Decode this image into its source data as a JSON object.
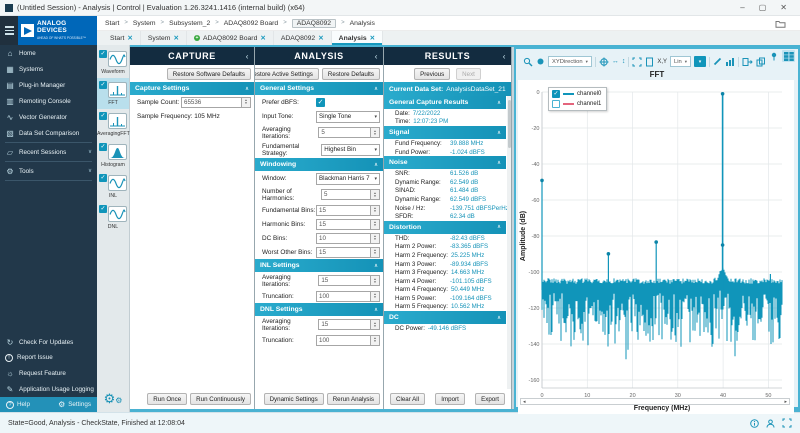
{
  "window": {
    "title": "(Untitled Session) - Analysis | Control | Evaluation 1.26.3241.1416 (internal build) (x64)",
    "minimize": "–",
    "maximize": "▢",
    "close": "✕"
  },
  "logo": {
    "line1": "ANALOG",
    "line2": "DEVICES",
    "tagline": "AHEAD OF WHAT'S POSSIBLE™"
  },
  "breadcrumb": {
    "separator": ">",
    "items": [
      "Start",
      "System",
      "Subsystem_2",
      "ADAQ8092 Board",
      "ADAQ8092",
      "Analysis"
    ],
    "boxed_item": "ADAQ8092"
  },
  "tabs": [
    {
      "label": "Start",
      "close": "✕",
      "icon": null,
      "active": false
    },
    {
      "label": "System",
      "close": "✕",
      "icon": null,
      "active": false
    },
    {
      "label": "ADAQ8092 Board",
      "close": "✕",
      "icon": "green-status-icon",
      "active": false
    },
    {
      "label": "ADAQ8092",
      "close": "✕",
      "icon": null,
      "active": false
    },
    {
      "label": "Analysis",
      "close": "✕",
      "icon": null,
      "active": true
    }
  ],
  "sidebar": {
    "items": [
      {
        "label": "Home",
        "icon": "home-icon",
        "chevron": false
      },
      {
        "label": "Systems",
        "icon": "systems-icon",
        "chevron": false
      },
      {
        "label": "Plug-in Manager",
        "icon": "plugin-manager-icon",
        "chevron": false
      },
      {
        "label": "Remoting Console",
        "icon": "remoting-console-icon",
        "chevron": false
      },
      {
        "label": "Vector Generator",
        "icon": "vector-generator-icon",
        "chevron": false
      },
      {
        "label": "Data Set Comparison",
        "icon": "data-set-comparison-icon",
        "chevron": false
      },
      {
        "label": "Recent Sessions",
        "icon": "folder-icon",
        "chevron": true
      },
      {
        "label": "Tools",
        "icon": "gear-icon",
        "chevron": true
      }
    ],
    "bottom_items": [
      {
        "label": "Check For Updates",
        "icon": "updates-icon"
      },
      {
        "label": "Report Issue",
        "icon": "report-issue-icon"
      },
      {
        "label": "Request Feature",
        "icon": "request-feature-icon"
      },
      {
        "label": "Application Usage Logging",
        "icon": "usage-logging-icon"
      }
    ],
    "footer": {
      "help": "Help",
      "settings": "Settings"
    }
  },
  "tool_strip": {
    "items": [
      {
        "label": "Waveform",
        "icon": "waveform-icon",
        "checked": true,
        "selected": false
      },
      {
        "label": "FFT",
        "icon": "fft-icon",
        "checked": true,
        "selected": true
      },
      {
        "label": "AveragingFFT",
        "icon": "averaging-fft-icon",
        "checked": true,
        "selected": false
      },
      {
        "label": "Histogram",
        "icon": "histogram-icon",
        "checked": true,
        "selected": false
      },
      {
        "label": "INL",
        "icon": "inl-icon",
        "checked": true,
        "selected": false
      },
      {
        "label": "DNL",
        "icon": "dnl-icon",
        "checked": true,
        "selected": false
      }
    ]
  },
  "capture": {
    "title": "CAPTURE",
    "collapse": "‹",
    "restore_button": "Restore Software Defaults",
    "section": "Capture Settings",
    "sample_count_label": "Sample Count:",
    "sample_count_value": "65536",
    "sample_frequency_text": "Sample Frequency: 105 MHz",
    "run_once": "Run Once",
    "run_continuously": "Run Continuously"
  },
  "analysis": {
    "title": "ANALYSIS",
    "collapse": "‹",
    "restore_active": "Restore Active Settings",
    "restore_defaults": "Restore Defaults",
    "sections": [
      {
        "name": "General Settings",
        "rows": [
          {
            "label": "Prefer dBFS:",
            "control": "checkbox",
            "value": "true"
          },
          {
            "label": "Input Tone:",
            "control": "select",
            "value": "Single Tone"
          },
          {
            "label": "Averaging Iterations:",
            "control": "spinner",
            "value": "5"
          },
          {
            "label": "Fundamental Strategy:",
            "control": "select",
            "value": "Highest Bin"
          }
        ]
      },
      {
        "name": "Windowing",
        "rows": [
          {
            "label": "Window:",
            "control": "select",
            "value": "Blackman Harris 7"
          },
          {
            "label": "Number of Harmonics:",
            "control": "spinner",
            "value": "5"
          },
          {
            "label": "Fundamental Bins:",
            "control": "spinner",
            "value": "15"
          },
          {
            "label": "Harmonic Bins:",
            "control": "spinner",
            "value": "15"
          },
          {
            "label": "DC Bins:",
            "control": "spinner",
            "value": "10"
          },
          {
            "label": "Worst Other Bins:",
            "control": "spinner",
            "value": "15"
          }
        ]
      },
      {
        "name": "INL Settings",
        "rows": [
          {
            "label": "Averaging Iterations:",
            "control": "spinner",
            "value": "15"
          },
          {
            "label": "Truncation:",
            "control": "spinner",
            "value": "100"
          }
        ]
      },
      {
        "name": "DNL Settings",
        "rows": [
          {
            "label": "Averaging Iterations:",
            "control": "spinner",
            "value": "15"
          },
          {
            "label": "Truncation:",
            "control": "spinner",
            "value": "100"
          }
        ]
      }
    ],
    "dynamic_settings": "Dynamic Settings",
    "rerun": "Rerun Analysis"
  },
  "results": {
    "title": "RESULTS",
    "collapse": "‹",
    "previous": "Previous",
    "next": "Next",
    "current_label": "Current Data Set:",
    "current_value": "AnalysisDataSet_21",
    "sections": [
      {
        "name": "General Capture Results",
        "align": false,
        "rows": [
          {
            "label": "Date:",
            "value": "7/22/2022"
          },
          {
            "label": "Time:",
            "value": "12:07:23 PM"
          }
        ]
      },
      {
        "name": "Signal",
        "align": true,
        "rows": [
          {
            "label": "Fund Frequency:",
            "value": "39.888 MHz"
          },
          {
            "label": "Fund Power:",
            "value": "-1.024 dBFS"
          }
        ]
      },
      {
        "name": "Noise",
        "align": true,
        "rows": [
          {
            "label": "SNR:",
            "value": "61.526 dB"
          },
          {
            "label": "Dynamic Range:",
            "value": "62.549 dB"
          },
          {
            "label": "SINAD:",
            "value": "61.484 dB"
          },
          {
            "label": "Dynamic Range:",
            "value": "62.549 dBFS"
          },
          {
            "label": "Noise / Hz:",
            "value": "-139.751 dBFSPerHz"
          },
          {
            "label": "SFDR:",
            "value": "62.34 dB"
          }
        ]
      },
      {
        "name": "Distortion",
        "align": true,
        "rows": [
          {
            "label": "THD:",
            "value": "-82.43 dBFS"
          },
          {
            "label": "Harm 2 Power:",
            "value": "-83.365 dBFS"
          },
          {
            "label": "Harm 2 Frequency:",
            "value": "25.225 MHz"
          },
          {
            "label": "Harm 3 Power:",
            "value": "-89.934 dBFS"
          },
          {
            "label": "Harm 3 Frequency:",
            "value": "14.663 MHz"
          },
          {
            "label": "Harm 4 Power:",
            "value": "-101.105 dBFS"
          },
          {
            "label": "Harm 4 Frequency:",
            "value": "50.449 MHz"
          },
          {
            "label": "Harm 5 Power:",
            "value": "-109.164 dBFS"
          },
          {
            "label": "Harm 5 Frequency:",
            "value": "10.562 MHz"
          }
        ]
      },
      {
        "name": "DC",
        "align": false,
        "rows": [
          {
            "label": "DC Power:",
            "value": "-49.146 dBFS"
          }
        ]
      }
    ],
    "clear_all": "Clear All",
    "import": "Import",
    "export": "Export"
  },
  "chart": {
    "title": "FFT",
    "xydirection_label": "XYDirection",
    "axis_label": "X,Y",
    "scale_label": "Lin",
    "toolbar_icons": [
      "zoom-icon",
      "cursor-dot-icon",
      "xy-direction-dropdown",
      "pan-crosshair-icon",
      "horizontal-scale-icon",
      "vertical-scale-icon",
      "fit-view-icon",
      "snapshot-icon",
      "axis-coordinates-label",
      "linear-scale-dropdown",
      "active-tool-button",
      "annotate-icon",
      "chart-type-icon",
      "export-icon",
      "copy-icon"
    ],
    "corner_icons": [
      "pin-icon",
      "layout-grid-icon"
    ],
    "legend": [
      {
        "label": "channel0",
        "color": "#1095ba",
        "checked": true
      },
      {
        "label": "channel1",
        "color": "#e4647c",
        "checked": false
      }
    ],
    "scrollbar": {
      "left_arrow": "◂",
      "right_arrow": "▸"
    }
  },
  "chart_data": {
    "type": "line",
    "title": "FFT",
    "xlabel": "Frequency (MHz)",
    "ylabel": "Amplitude (dB)",
    "xlim": [
      0,
      53
    ],
    "ylim": [
      -160,
      0
    ],
    "xticks": [
      0,
      10,
      20,
      30,
      40,
      50
    ],
    "yticks": [
      0,
      -20,
      -40,
      -60,
      -80,
      -100,
      -120,
      -140,
      -160
    ],
    "grid": true,
    "legend_position": "top-left",
    "series": [
      {
        "name": "channel0",
        "color": "#1095ba",
        "visible": true
      },
      {
        "name": "channel1",
        "color": "#e4647c",
        "visible": false
      }
    ],
    "noise_floor_dB": {
      "top": -104,
      "mean": -112,
      "bottom": -150
    },
    "peaks": [
      {
        "name": "dc",
        "x_MHz": 0.0,
        "y_dBFS": -49.146
      },
      {
        "name": "harm5",
        "x_MHz": 10.562,
        "y_dBFS": -109.164
      },
      {
        "name": "harm3",
        "x_MHz": 14.663,
        "y_dBFS": -89.934
      },
      {
        "name": "harm2",
        "x_MHz": 25.225,
        "y_dBFS": -83.365
      },
      {
        "name": "fundamental",
        "x_MHz": 39.888,
        "y_dBFS": -1.024
      },
      {
        "name": "harm4",
        "x_MHz": 50.449,
        "y_dBFS": -101.105
      }
    ],
    "markers": [
      {
        "x_MHz": 0.0,
        "y_dB": -49.1
      },
      {
        "x_MHz": 14.663,
        "y_dB": -89.9
      },
      {
        "x_MHz": 25.225,
        "y_dB": -83.4
      },
      {
        "x_MHz": 39.888,
        "y_dB": -1.0
      },
      {
        "x_MHz": 39.888,
        "y_dB": -85.0
      }
    ]
  },
  "statusbar": {
    "text": "State=Good, Analysis - CheckState, Finished at 12:08:04"
  }
}
